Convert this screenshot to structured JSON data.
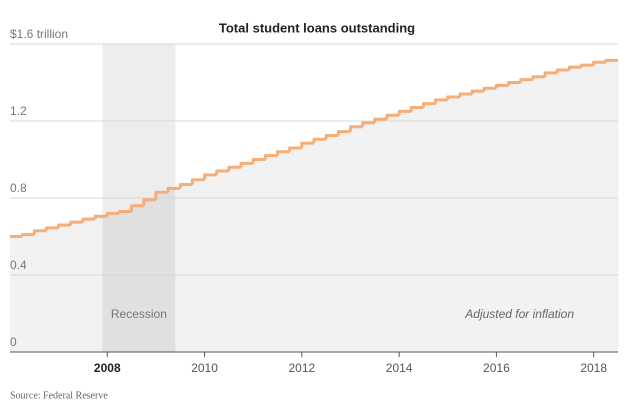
{
  "chart_data": {
    "type": "step",
    "title": "Total student loans outstanding",
    "source": "Source: Federal Reserve",
    "annotation": "Adjusted for inflation",
    "shaded_region": {
      "label": "Recession",
      "x": [
        2007.9,
        2009.4
      ]
    },
    "color": "#f5ae78",
    "area_color": "#f2f2f2",
    "x": [
      2006,
      2006.25,
      2006.5,
      2006.75,
      2007,
      2007.25,
      2007.5,
      2007.75,
      2008,
      2008.25,
      2008.5,
      2008.75,
      2009,
      2009.25,
      2009.5,
      2009.75,
      2010,
      2010.25,
      2010.5,
      2010.75,
      2011,
      2011.25,
      2011.5,
      2011.75,
      2012,
      2012.25,
      2012.5,
      2012.75,
      2013,
      2013.25,
      2013.5,
      2013.75,
      2014,
      2014.25,
      2014.5,
      2014.75,
      2015,
      2015.25,
      2015.5,
      2015.75,
      2016,
      2016.25,
      2016.5,
      2016.75,
      2017,
      2017.25,
      2017.5,
      2017.75,
      2018,
      2018.25
    ],
    "values": [
      0.6,
      0.61,
      0.63,
      0.645,
      0.66,
      0.675,
      0.69,
      0.705,
      0.72,
      0.73,
      0.76,
      0.79,
      0.83,
      0.85,
      0.87,
      0.895,
      0.92,
      0.94,
      0.96,
      0.98,
      1.0,
      1.02,
      1.04,
      1.06,
      1.085,
      1.105,
      1.125,
      1.145,
      1.17,
      1.19,
      1.21,
      1.23,
      1.25,
      1.27,
      1.29,
      1.31,
      1.325,
      1.34,
      1.355,
      1.37,
      1.385,
      1.4,
      1.415,
      1.43,
      1.45,
      1.465,
      1.48,
      1.49,
      1.505,
      1.515
    ],
    "xlim": [
      2006,
      2018.5
    ],
    "xticks": [
      2008,
      2010,
      2012,
      2014,
      2016,
      2018
    ],
    "ylim": [
      0,
      1.6
    ],
    "yticks": [
      0,
      0.4,
      0.8,
      1.2,
      {
        "value": 1.6,
        "label": "$1.6 trillion"
      }
    ],
    "grid": true
  }
}
